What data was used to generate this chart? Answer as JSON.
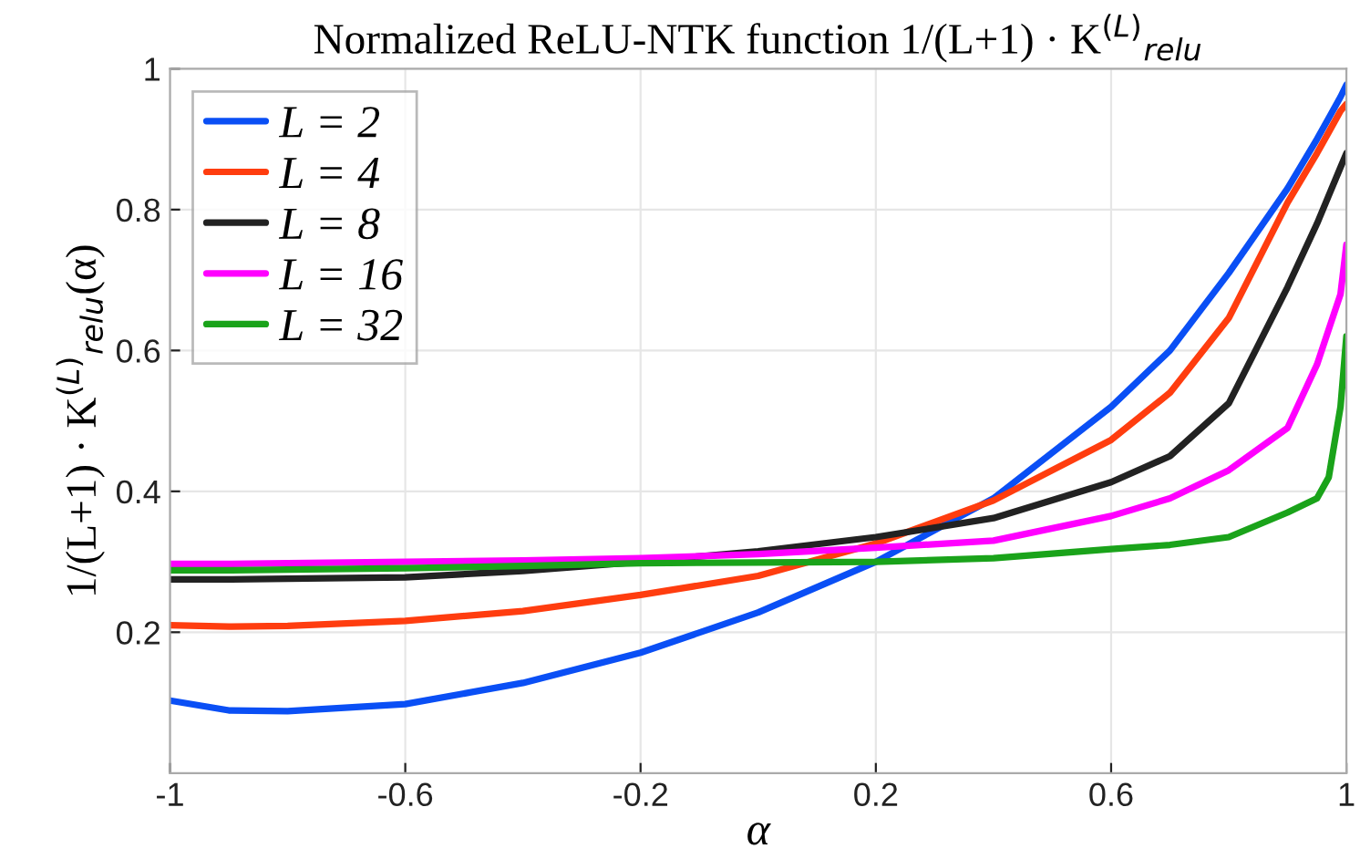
{
  "chart_data": {
    "type": "line",
    "title": "Normalized ReLU-NTK function 1/(L+1) · K$^{(L)}$$_{relu}$",
    "xlabel": "α",
    "ylabel": "1/(L+1) · K$^{(L)}$$_{relu}$(α)",
    "x": [
      -1,
      -0.9,
      -0.8,
      -0.6,
      -0.4,
      -0.2,
      0,
      0.2,
      0.4,
      0.6,
      0.7,
      0.8,
      0.9,
      0.95,
      0.97,
      0.99,
      1
    ],
    "series": [
      {
        "name": "L = 2",
        "color": "#0a4ff5",
        "values": [
          0.103,
          0.089,
          0.088,
          0.098,
          0.128,
          0.171,
          0.228,
          0.3,
          0.39,
          0.52,
          0.6,
          0.71,
          0.83,
          0.9,
          0.93,
          0.96,
          0.977
        ]
      },
      {
        "name": "L = 4",
        "color": "#ff3d0f",
        "values": [
          0.21,
          0.208,
          0.209,
          0.216,
          0.23,
          0.253,
          0.28,
          0.326,
          0.387,
          0.473,
          0.54,
          0.646,
          0.81,
          0.88,
          0.91,
          0.94,
          0.95
        ]
      },
      {
        "name": "L = 8",
        "color": "#222222",
        "values": [
          0.275,
          0.275,
          0.276,
          0.278,
          0.287,
          0.3,
          0.315,
          0.335,
          0.362,
          0.413,
          0.45,
          0.525,
          0.69,
          0.78,
          0.82,
          0.86,
          0.88
        ]
      },
      {
        "name": "L = 16",
        "color": "#ff00ff",
        "values": [
          0.297,
          0.297,
          0.298,
          0.3,
          0.302,
          0.305,
          0.311,
          0.32,
          0.33,
          0.365,
          0.39,
          0.43,
          0.49,
          0.58,
          0.63,
          0.68,
          0.75
        ]
      },
      {
        "name": "L = 32",
        "color": "#1aa31a",
        "values": [
          0.288,
          0.288,
          0.289,
          0.291,
          0.294,
          0.298,
          0.299,
          0.3,
          0.305,
          0.318,
          0.324,
          0.335,
          0.37,
          0.39,
          0.42,
          0.52,
          0.62
        ]
      }
    ],
    "xlim": [
      -1,
      1
    ],
    "ylim": [
      0,
      1
    ],
    "xticks": [
      -1,
      -0.6,
      -0.2,
      0.2,
      0.6,
      1
    ],
    "yticks": [
      0.2,
      0.4,
      0.6,
      0.8,
      1
    ],
    "grid": true,
    "legend": "top left",
    "line_style": "solid",
    "marker": "none"
  }
}
